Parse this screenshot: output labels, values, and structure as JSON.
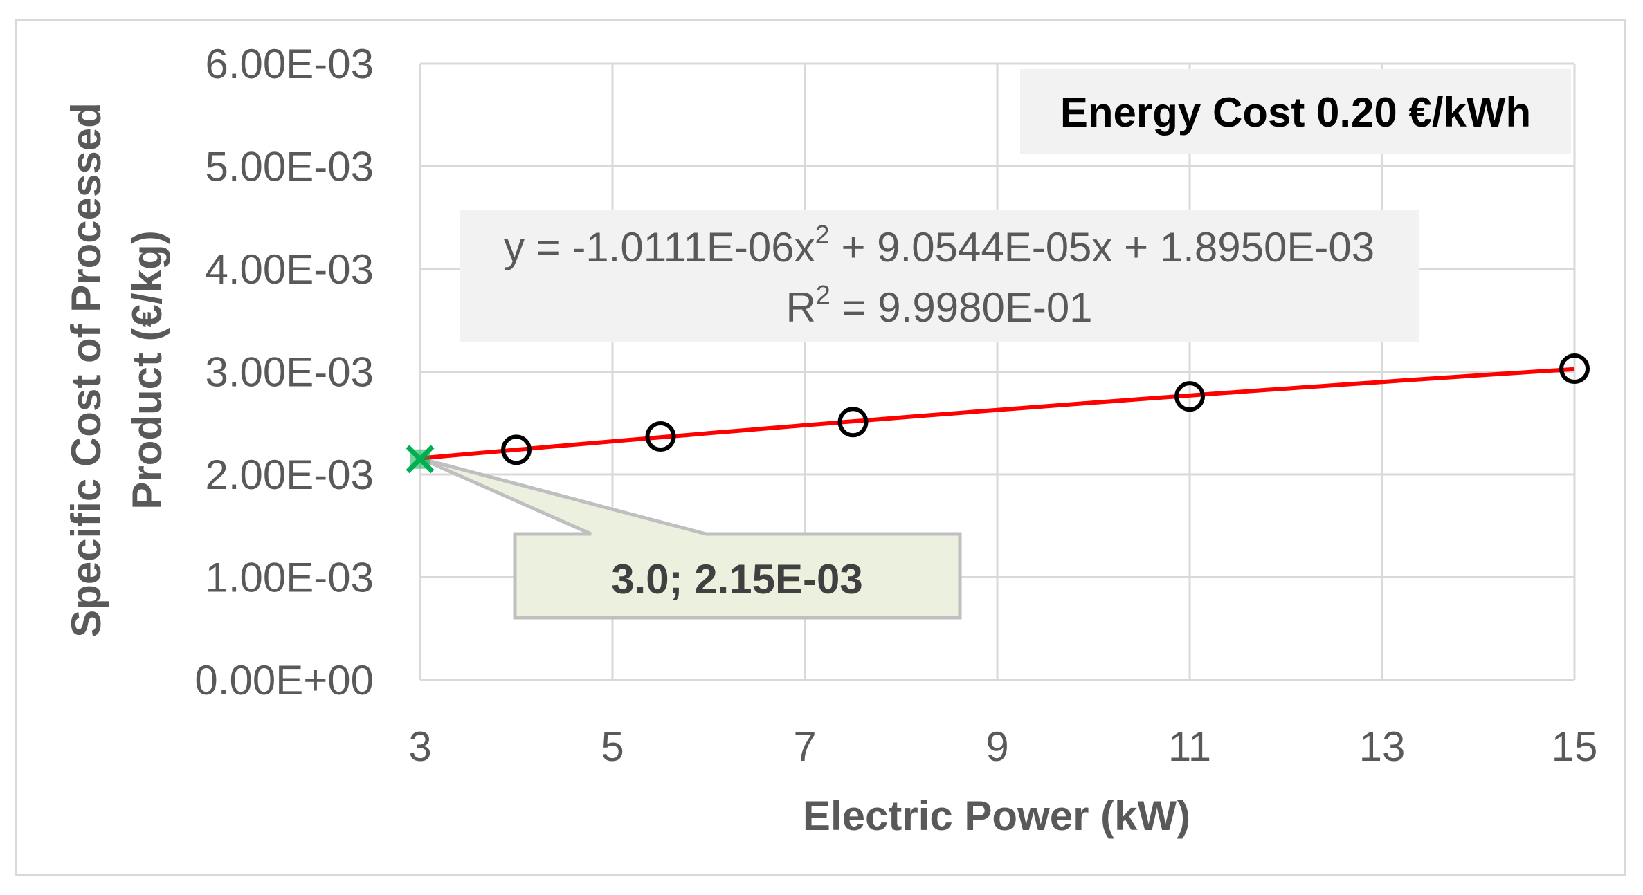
{
  "chart_data": {
    "type": "scatter",
    "xlabel": "Electric Power (kW)",
    "ylabel_lines": [
      "Specific Cost of Processed",
      "Product (€/kg)"
    ],
    "xlim": [
      3,
      15
    ],
    "ylim": [
      0,
      0.006
    ],
    "x_ticks": [
      3,
      5,
      7,
      9,
      11,
      13,
      15
    ],
    "x_tick_labels": [
      "3",
      "5",
      "7",
      "9",
      "11",
      "13",
      "15"
    ],
    "y_ticks": [
      0,
      0.001,
      0.002,
      0.003,
      0.004,
      0.005,
      0.006
    ],
    "y_tick_labels": [
      "0.00E+00",
      "1.00E-03",
      "2.00E-03",
      "3.00E-03",
      "4.00E-03",
      "5.00E-03",
      "6.00E-03"
    ],
    "grid": true,
    "series": [
      {
        "x": [
          3,
          4,
          5.5,
          7.5,
          11,
          15
        ],
        "y": [
          0.00215,
          0.00224,
          0.00237,
          0.00251,
          0.00276,
          0.00303
        ],
        "color": "#000000"
      }
    ],
    "trendline": {
      "type": "polynomial-2",
      "coefficients": [
        -1.0111e-06,
        9.0544e-05,
        0.001895
      ],
      "color": "#ff0000",
      "equation_lines": [
        "y = -1.0111E-06x",
        "2",
        " + 9.0544E-05x + 1.8950E-03"
      ],
      "r2_prefix": "R",
      "r2_sup": "2",
      "r2_suffix": " = 9.9980E-01"
    },
    "highlight": {
      "x": 3.0,
      "y": 0.00215,
      "color": "#00b050",
      "label": "3.0; 2.15E-03"
    },
    "annotation": "Energy Cost 0.20 €/kWh"
  }
}
